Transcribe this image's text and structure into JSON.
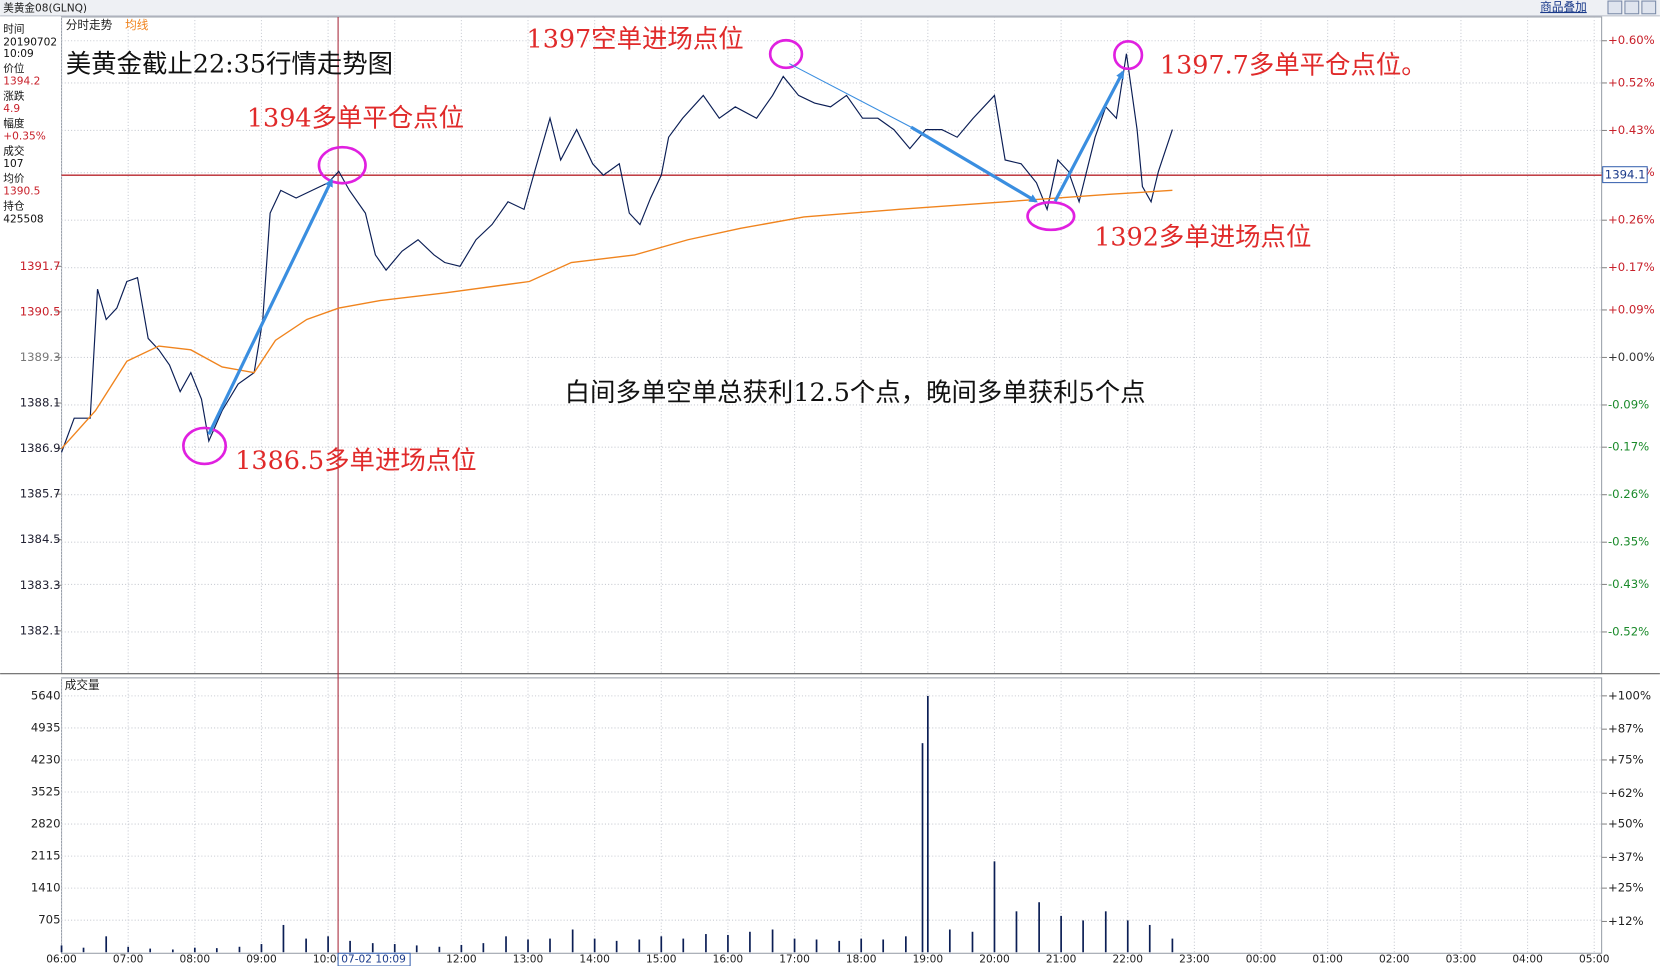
{
  "header": {
    "symbol": "美黄金08(GLNQ)",
    "overlay": "商品叠加"
  },
  "info": [
    {
      "label": "时间",
      "values": [
        "20190702",
        "10:09"
      ]
    },
    {
      "label": "价位",
      "values": [
        "1394.2"
      ]
    },
    {
      "label": "涨跌",
      "values": [
        "4.9"
      ]
    },
    {
      "label": "幅度",
      "values": [
        "+0.35%"
      ]
    },
    {
      "label": "成交",
      "values": [
        "107"
      ]
    },
    {
      "label": "均价",
      "values": [
        "1390.5"
      ]
    },
    {
      "label": "持仓",
      "values": [
        "425508"
      ]
    }
  ],
  "chart_data": [
    {
      "type": "line",
      "title": "美黄金截止22:35行情走势图",
      "series": [
        {
          "name": "分时走势",
          "color": "#0b1e55",
          "x": [
            0,
            0.19,
            0.43,
            0.54,
            0.67,
            0.83,
            0.98,
            1.14,
            1.3,
            1.46,
            1.62,
            1.78,
            1.94,
            2.1,
            2.21,
            2.41,
            2.65,
            2.89,
            3.02,
            3.13,
            3.29,
            3.52,
            3.76,
            4,
            4.16,
            4.32,
            4.56,
            4.71,
            4.87,
            5.11,
            5.35,
            5.59,
            5.75,
            5.98,
            6.22,
            6.46,
            6.7,
            6.94,
            7.1,
            7.33,
            7.49,
            7.73,
            7.97,
            8.13,
            8.37,
            8.52,
            8.68,
            8.84,
            9,
            9.11,
            9.32,
            9.63,
            9.87,
            10.11,
            10.43,
            10.67,
            10.83,
            11.06,
            11.3,
            11.54,
            11.78,
            12.02,
            12.25,
            12.49,
            12.73,
            12.97,
            13.21,
            13.44,
            13.68,
            14,
            14.16,
            14.4,
            14.63,
            14.79,
            14.95,
            15.11,
            15.27,
            15.51,
            15.67,
            15.83,
            15.98,
            16.14,
            16.22,
            16.35,
            16.46,
            16.67
          ],
          "values": [
            1386.8,
            1387.7,
            1387.7,
            1391.1,
            1390.3,
            1390.6,
            1391.3,
            1391.4,
            1389.8,
            1389.5,
            1389.1,
            1388.4,
            1388.9,
            1388.2,
            1387.1,
            1387.9,
            1388.6,
            1388.9,
            1390.3,
            1393.1,
            1393.7,
            1393.5,
            1393.7,
            1393.9,
            1394.2,
            1393.7,
            1393.1,
            1392.0,
            1391.6,
            1392.1,
            1392.4,
            1392.0,
            1391.8,
            1391.7,
            1392.4,
            1392.8,
            1393.4,
            1393.2,
            1394.2,
            1395.6,
            1394.5,
            1395.3,
            1394.4,
            1394.1,
            1394.4,
            1393.1,
            1392.8,
            1393.5,
            1394.1,
            1395.1,
            1395.6,
            1396.2,
            1395.6,
            1395.9,
            1395.6,
            1396.2,
            1396.7,
            1396.2,
            1396.0,
            1395.9,
            1396.2,
            1395.6,
            1395.6,
            1395.3,
            1394.8,
            1395.3,
            1395.3,
            1395.1,
            1395.6,
            1396.2,
            1394.5,
            1394.4,
            1393.9,
            1393.2,
            1394.5,
            1394.2,
            1393.4,
            1395.1,
            1395.9,
            1395.6,
            1397.3,
            1395.3,
            1393.8,
            1393.4,
            1394.2,
            1395.3
          ]
        },
        {
          "name": "均线",
          "color": "#f0841e",
          "x": [
            0,
            0.51,
            0.98,
            1.46,
            1.94,
            2.41,
            2.89,
            3.21,
            3.68,
            4.16,
            4.79,
            5.75,
            7.02,
            7.65,
            8.6,
            9.4,
            10.19,
            11.14,
            12.57,
            14.16,
            15.75,
            16.67
          ],
          "values": [
            1386.9,
            1387.9,
            1389.2,
            1389.6,
            1389.5,
            1389.05,
            1388.9,
            1389.75,
            1390.3,
            1390.6,
            1390.8,
            1391.0,
            1391.3,
            1391.8,
            1392.0,
            1392.4,
            1392.7,
            1393.0,
            1393.2,
            1393.4,
            1393.6,
            1393.7
          ]
        }
      ],
      "xlim": [
        0,
        23
      ],
      "ylim": [
        1381,
        1398.1
      ],
      "yticks": [
        1391.7,
        1390.5,
        1389.3,
        1388.1,
        1386.9,
        1385.7,
        1384.5,
        1383.3,
        1382.1
      ],
      "y2lim": [
        -0.597,
        0.633
      ],
      "y2ticks": [
        {
          "value": 0.6,
          "label": "+0.60%"
        },
        {
          "value": 0.52,
          "label": "+0.52%"
        },
        {
          "value": 0.43,
          "label": "+0.43%"
        },
        {
          "value": 0.35,
          "label": "+0.35%"
        },
        {
          "value": 0.26,
          "label": "+0.26%"
        },
        {
          "value": 0.17,
          "label": "+0.17%"
        },
        {
          "value": 0.09,
          "label": "+0.09%"
        },
        {
          "value": 0,
          "label": "+0.00%"
        },
        {
          "value": -0.09,
          "label": "-0.09%"
        },
        {
          "value": -0.17,
          "label": "-0.17%"
        },
        {
          "value": -0.26,
          "label": "-0.26%"
        },
        {
          "value": -0.35,
          "label": "-0.35%"
        },
        {
          "value": -0.43,
          "label": "-0.43%"
        },
        {
          "value": -0.52,
          "label": "-0.52%"
        }
      ],
      "grid": true,
      "reference_line": {
        "value": 1394.1,
        "color": "#b8242c"
      },
      "cursor": {
        "x": 4.15,
        "label": "07-02 10:09",
        "color": "#a8283a"
      },
      "annotations": [
        "1397空单进场点位",
        "1397.7多单平仓点位。",
        "1394多单平仓点位",
        "1392多单进场点位",
        "1386.5多单进场点位",
        "白间多单空单总获利12.5个点，晚间多单获利5个点"
      ]
    },
    {
      "type": "bar",
      "title": "成交量",
      "color": "#0b1e55",
      "x": [
        0,
        0.33,
        0.67,
        1,
        1.33,
        1.67,
        2,
        2.33,
        2.67,
        3,
        3.33,
        3.67,
        4,
        4.33,
        4.67,
        5,
        5.33,
        5.67,
        6,
        6.33,
        6.67,
        7,
        7.33,
        7.67,
        8,
        8.33,
        8.67,
        9,
        9.33,
        9.67,
        10,
        10.33,
        10.67,
        11,
        11.33,
        11.67,
        12,
        12.33,
        12.67,
        12.92,
        13,
        13.33,
        13.67,
        14,
        14.33,
        14.67,
        15,
        15.33,
        15.67,
        16,
        16.33,
        16.67
      ],
      "values": [
        150,
        100,
        350,
        120,
        80,
        60,
        100,
        90,
        120,
        180,
        600,
        300,
        350,
        250,
        200,
        180,
        150,
        120,
        160,
        200,
        350,
        280,
        300,
        500,
        300,
        250,
        280,
        350,
        300,
        400,
        380,
        450,
        500,
        300,
        280,
        250,
        300,
        280,
        350,
        4600,
        5640,
        500,
        450,
        2000,
        900,
        1100,
        800,
        700,
        900,
        700,
        600,
        300
      ],
      "xlim": [
        0,
        23
      ],
      "xticks": [
        {
          "value": 0,
          "label": "06:00"
        },
        {
          "value": 1,
          "label": "07:00"
        },
        {
          "value": 2,
          "label": "08:00"
        },
        {
          "value": 3,
          "label": "09:00"
        },
        {
          "value": 4,
          "label": "10:00"
        },
        {
          "value": 5,
          "label": "11:00"
        },
        {
          "value": 6,
          "label": "12:00"
        },
        {
          "value": 7,
          "label": "13:00"
        },
        {
          "value": 8,
          "label": "14:00"
        },
        {
          "value": 9,
          "label": "15:00"
        },
        {
          "value": 10,
          "label": "16:00"
        },
        {
          "value": 11,
          "label": "17:00"
        },
        {
          "value": 12,
          "label": "18:00"
        },
        {
          "value": 13,
          "label": "19:00"
        },
        {
          "value": 14,
          "label": "20:00"
        },
        {
          "value": 15,
          "label": "21:00"
        },
        {
          "value": 16,
          "label": "22:00"
        },
        {
          "value": 17,
          "label": "23:00"
        },
        {
          "value": 18,
          "label": "00:00"
        },
        {
          "value": 19,
          "label": "01:00"
        },
        {
          "value": 20,
          "label": "02:00"
        },
        {
          "value": 21,
          "label": "03:00"
        },
        {
          "value": 22,
          "label": "04:00"
        },
        {
          "value": 23,
          "label": "05:00"
        }
      ],
      "ylim": [
        0,
        6036
      ],
      "yticks": [
        5640,
        4935,
        4230,
        3525,
        2820,
        2115,
        1410,
        705
      ],
      "y2lim": [
        0,
        107
      ],
      "y2ticks": [
        {
          "value": 100,
          "label": "+100%"
        },
        {
          "value": 87,
          "label": "+87%"
        },
        {
          "value": 75,
          "label": "+75%"
        },
        {
          "value": 62,
          "label": "+62%"
        },
        {
          "value": 50,
          "label": "+50%"
        },
        {
          "value": 37,
          "label": "+37%"
        },
        {
          "value": 25,
          "label": "+25%"
        },
        {
          "value": 12,
          "label": "+12%"
        }
      ],
      "grid": true
    }
  ]
}
